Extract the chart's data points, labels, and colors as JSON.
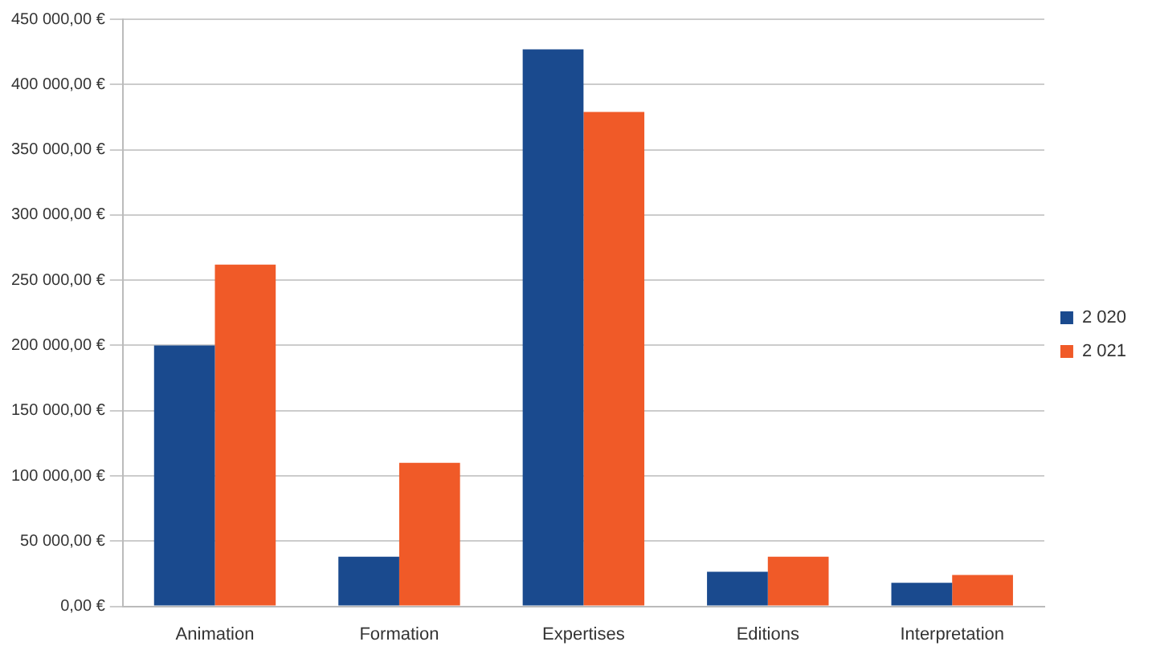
{
  "chart_data": {
    "type": "bar",
    "categories": [
      "Animation",
      "Formation",
      "Expertises",
      "Editions",
      "Interpretation"
    ],
    "series": [
      {
        "name": "2 020",
        "color": "#1a4a8e",
        "values": [
          200000,
          38000,
          427000,
          26500,
          18000
        ]
      },
      {
        "name": "2 021",
        "color": "#f05a28",
        "values": [
          262000,
          110000,
          379000,
          38000,
          24000
        ]
      }
    ],
    "ylim": [
      0,
      450000
    ],
    "yticks": [
      {
        "value": 0,
        "label": "0,00 €"
      },
      {
        "value": 50000,
        "label": "50 000,00 €"
      },
      {
        "value": 100000,
        "label": "100 000,00 €"
      },
      {
        "value": 150000,
        "label": "150 000,00 €"
      },
      {
        "value": 200000,
        "label": "200 000,00 €"
      },
      {
        "value": 250000,
        "label": "250 000,00 €"
      },
      {
        "value": 300000,
        "label": "300 000,00 €"
      },
      {
        "value": 350000,
        "label": "350 000,00 €"
      },
      {
        "value": 400000,
        "label": "400 000,00 €"
      },
      {
        "value": 450000,
        "label": "450 000,00 €"
      }
    ],
    "grid": "y",
    "legend": "right"
  }
}
